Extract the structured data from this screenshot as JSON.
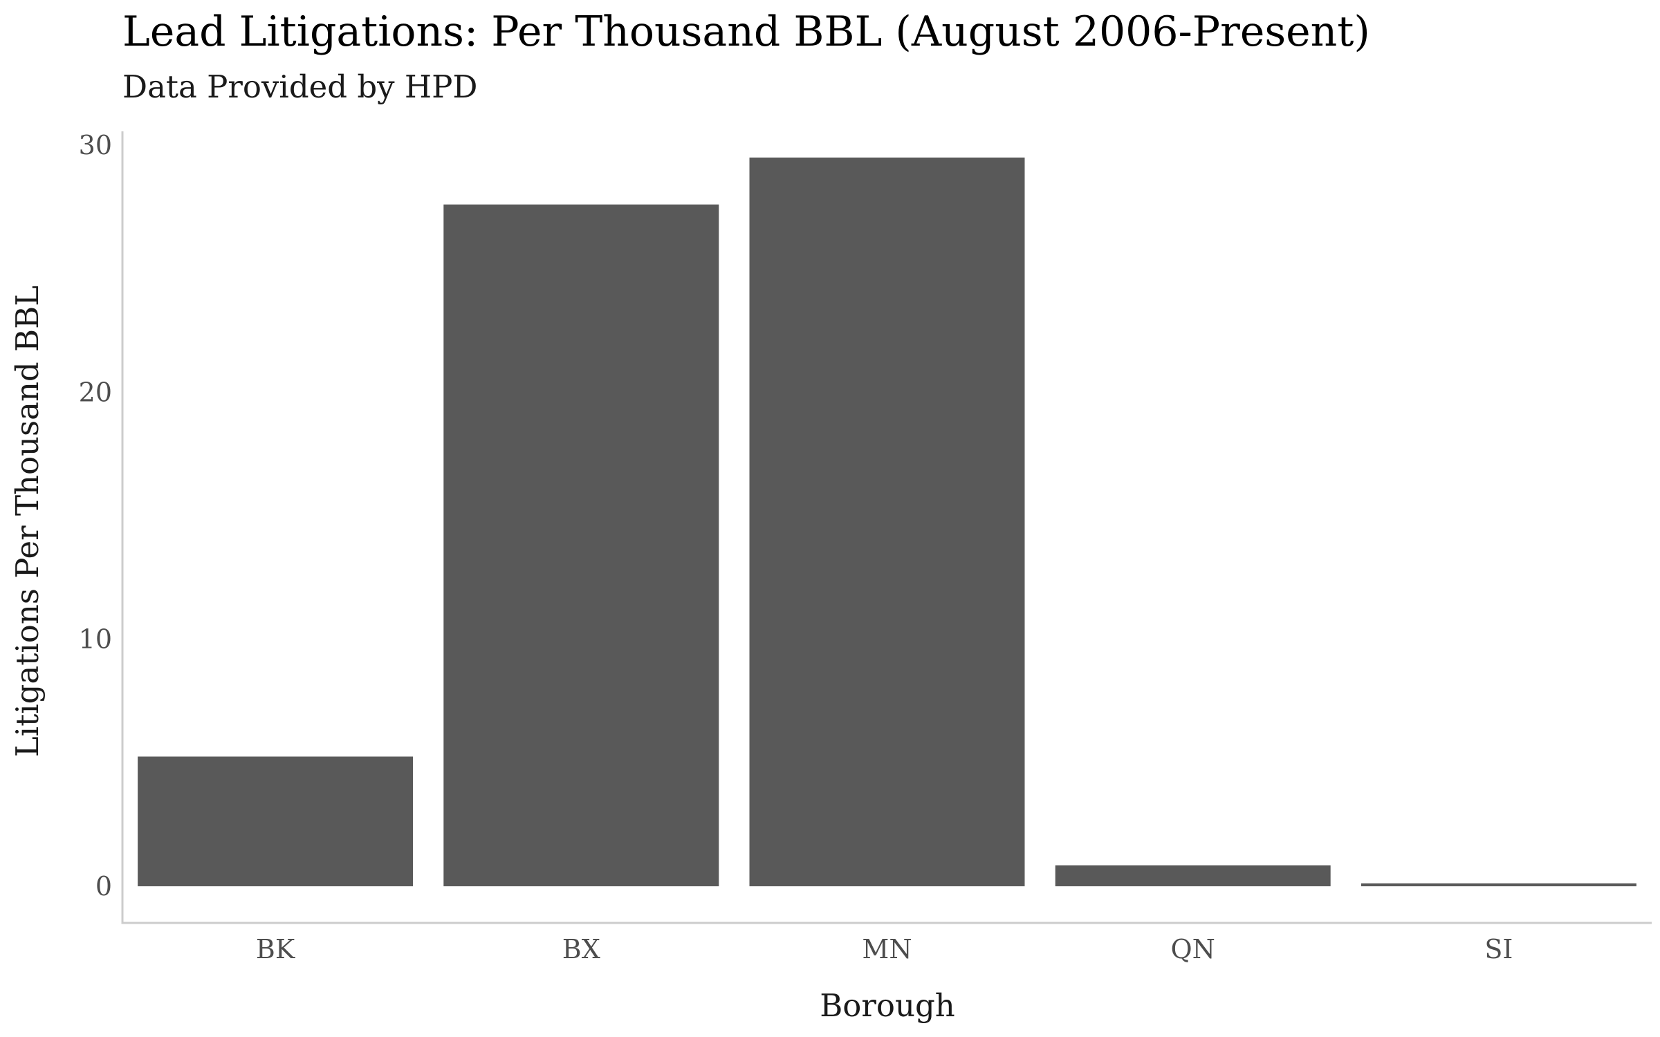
{
  "chart_data": {
    "type": "bar",
    "title": "Lead Litigations: Per Thousand BBL (August 2006-Present)",
    "subtitle": "Data Provided by HPD",
    "xlabel": "Borough",
    "ylabel": "Litigations Per Thousand BBL",
    "categories": [
      "BK",
      "BX",
      "MN",
      "QN",
      "SI"
    ],
    "values": [
      5.25,
      27.6,
      29.5,
      0.85,
      0.12
    ],
    "ylim": [
      0,
      30
    ],
    "yticks": [
      "0",
      "10",
      "20",
      "30"
    ],
    "grid": false,
    "legend": "none",
    "bar_color": "#595959"
  }
}
